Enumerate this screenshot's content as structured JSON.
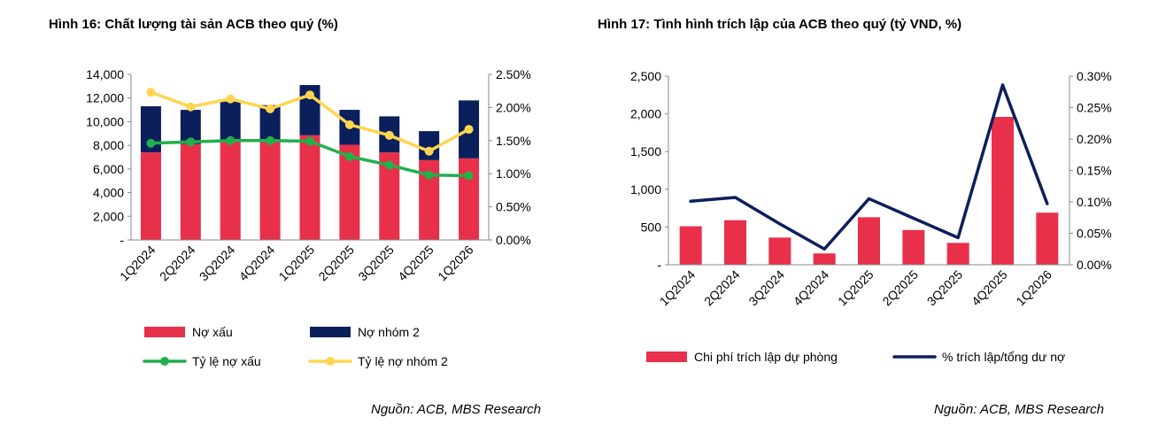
{
  "colors": {
    "npl_bar": "#E8304A",
    "group2_bar": "#0B1F5C",
    "npl_ratio_line": "#21B04B",
    "group2_ratio_line": "#FFD54F",
    "provision_bar": "#E8304A",
    "provision_ratio_line": "#0B1F5C"
  },
  "chart_data": [
    {
      "type": "bar",
      "title": "Hình 16: Chất lượng tài sản ACB theo quý (%)",
      "source": "Nguồn: ACB, MBS Research",
      "stacked": true,
      "categories": [
        "1Q2024",
        "2Q2024",
        "3Q2024",
        "4Q2024",
        "1Q2025",
        "2Q2025",
        "3Q2025",
        "4Q2025",
        "1Q2026"
      ],
      "series": [
        {
          "name": "Nợ xấu",
          "type": "bar",
          "axis": "left",
          "color": "#E8304A",
          "values": [
            7400,
            8100,
            8300,
            8300,
            8850,
            8050,
            7400,
            6750,
            6900
          ]
        },
        {
          "name": "Nợ nhóm 2",
          "type": "bar",
          "axis": "left",
          "color": "#0B1F5C",
          "values": [
            3900,
            2900,
            3400,
            3100,
            4250,
            2950,
            3050,
            2450,
            4900
          ]
        },
        {
          "name": "Tỷ lệ nợ xấu",
          "type": "line",
          "axis": "right",
          "color": "#21B04B",
          "values": [
            1.46,
            1.48,
            1.5,
            1.5,
            1.49,
            1.26,
            1.13,
            0.98,
            0.97
          ]
        },
        {
          "name": "Tỷ lệ nợ nhóm 2",
          "type": "line",
          "axis": "right",
          "color": "#FFD54F",
          "values": [
            2.23,
            2.01,
            2.13,
            1.98,
            2.19,
            1.74,
            1.58,
            1.34,
            1.67
          ]
        }
      ],
      "ylim_left": [
        0,
        14000
      ],
      "ylim_right": [
        0,
        2.5
      ],
      "yticks_left": [
        "-",
        "2,000",
        "4,000",
        "6,000",
        "8,000",
        "10,000",
        "12,000",
        "14,000"
      ],
      "yticks_right": [
        "0.00%",
        "0.50%",
        "1.00%",
        "1.50%",
        "2.00%",
        "2.50%"
      ],
      "legend_position": "bottom",
      "grid": false
    },
    {
      "type": "bar",
      "title": "Hình 17: Tình hình trích lập của ACB theo quý (tỷ VND, %)",
      "source": "Nguồn: ACB, MBS Research",
      "categories": [
        "1Q2024",
        "2Q2024",
        "3Q2024",
        "4Q2024",
        "1Q2025",
        "2Q2025",
        "3Q2025",
        "4Q2025",
        "1Q2026"
      ],
      "series": [
        {
          "name": "Chi phí trích lập dự phòng",
          "type": "bar",
          "axis": "left",
          "color": "#E8304A",
          "values": [
            510,
            590,
            360,
            150,
            630,
            460,
            290,
            1960,
            690
          ]
        },
        {
          "name": "% trích lập/tổng dư nợ",
          "type": "line",
          "axis": "right",
          "color": "#0B1F5C",
          "values": [
            0.101,
            0.107,
            0.065,
            0.025,
            0.105,
            0.074,
            0.043,
            0.286,
            0.097
          ]
        }
      ],
      "ylim_left": [
        0,
        2500
      ],
      "ylim_right": [
        0,
        0.3
      ],
      "yticks_left": [
        "-",
        "500",
        "1,000",
        "1,500",
        "2,000",
        "2,500"
      ],
      "yticks_right": [
        "0.00%",
        "0.05%",
        "0.10%",
        "0.15%",
        "0.20%",
        "0.25%",
        "0.30%"
      ],
      "legend_position": "bottom",
      "grid": false
    }
  ]
}
